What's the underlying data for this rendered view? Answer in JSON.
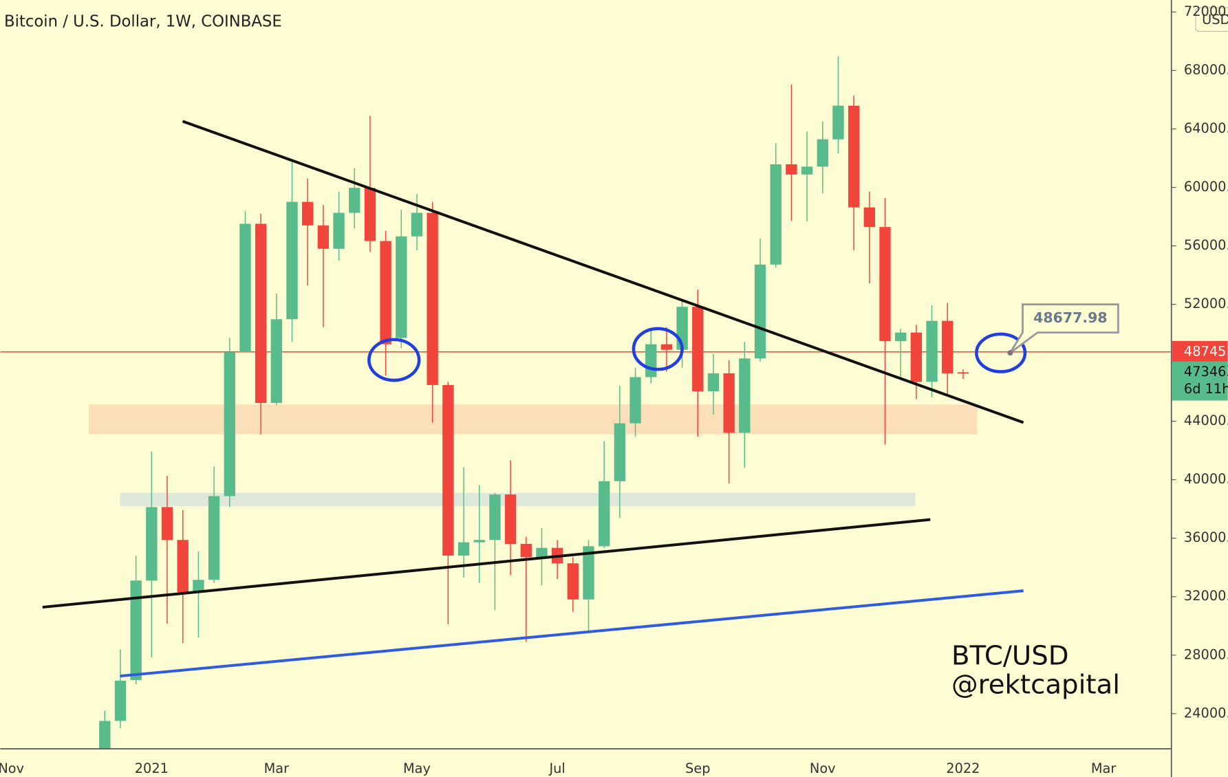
{
  "chart_data": {
    "type": "candlestick",
    "title": "Bitcoin / U.S. Dollar, 1W, COINBASE",
    "currency": "USD",
    "categories": [
      "Nov",
      null,
      null,
      null,
      null,
      null,
      null,
      null,
      null,
      "2021",
      null,
      null,
      null,
      null,
      null,
      null,
      null,
      "Mar",
      null,
      null,
      null,
      null,
      null,
      null,
      null,
      null,
      "May",
      null,
      null,
      null,
      null,
      null,
      null,
      null,
      null,
      "Jul",
      null,
      null,
      null,
      null,
      null,
      null,
      null,
      null,
      "Sep",
      null,
      null,
      null,
      null,
      null,
      null,
      null,
      "Nov",
      null,
      null,
      null,
      null,
      null,
      null,
      null,
      null,
      "2022",
      null,
      null,
      null,
      null,
      null,
      null,
      null,
      null,
      "Mar",
      null,
      null,
      null,
      null
    ],
    "open": [
      null,
      null,
      null,
      null,
      null,
      null,
      19200,
      23500,
      26300,
      33100,
      38130,
      35880,
      32300,
      33150,
      38880,
      48730,
      57510,
      45250,
      50980,
      59010,
      57400,
      55800,
      58260,
      59970,
      56330,
      49700,
      56650,
      58260,
      46480,
      34810,
      35720,
      35880,
      38990,
      35610,
      34700,
      35340,
      34280,
      31810,
      35450,
      39900,
      43860,
      47020,
      49270,
      48890,
      51830,
      46050,
      47280,
      43210,
      48300,
      54720,
      61580,
      60880,
      61420,
      63290,
      65590,
      58630,
      57290,
      49480,
      50070,
      46700,
      50870,
      47350,
      null,
      null,
      null,
      null,
      null,
      null,
      null,
      null,
      null,
      null,
      null,
      null,
      null
    ],
    "high": [
      null,
      null,
      null,
      null,
      null,
      null,
      24200,
      28390,
      34800,
      41930,
      40270,
      37920,
      35100,
      40900,
      49700,
      58370,
      58200,
      52740,
      61740,
      60610,
      58790,
      59700,
      61310,
      64900,
      57030,
      58470,
      59540,
      59010,
      46700,
      40860,
      39630,
      39100,
      41340,
      36100,
      36700,
      35880,
      34700,
      35880,
      42630,
      46430,
      47660,
      50330,
      50440,
      52210,
      53010,
      48620,
      48190,
      49420,
      56490,
      63020,
      67040,
      63820,
      64520,
      68960,
      66290,
      59700,
      59280,
      50330,
      50600,
      51940,
      52100,
      47550,
      null,
      null,
      null,
      null,
      null,
      null,
      null,
      null,
      null,
      null,
      null,
      null,
      null
    ],
    "low": [
      null,
      null,
      null,
      null,
      null,
      null,
      19000,
      23000,
      26000,
      27850,
      30150,
      28820,
      29200,
      32940,
      38130,
      48730,
      43110,
      45090,
      49420,
      53280,
      50440,
      54990,
      57190,
      55580,
      47120,
      49000,
      55700,
      43910,
      30100,
      33310,
      32940,
      31070,
      33470,
      28920,
      32780,
      33200,
      30960,
      29570,
      35340,
      37380,
      42950,
      46590,
      47390,
      47660,
      42950,
      44450,
      39740,
      40810,
      48090,
      54510,
      57720,
      57670,
      59600,
      62330,
      55690,
      53440,
      42410,
      47020,
      45520,
      45630,
      45840,
      46900,
      null,
      null,
      null,
      null,
      null,
      null,
      null,
      null,
      null,
      null,
      null,
      null,
      null
    ],
    "close": [
      null,
      null,
      null,
      null,
      null,
      null,
      23500,
      26250,
      33100,
      38130,
      35880,
      32300,
      33150,
      38880,
      48730,
      57510,
      45250,
      50980,
      59010,
      57400,
      55800,
      58260,
      59970,
      56330,
      49270,
      56650,
      58260,
      46480,
      34810,
      35720,
      35880,
      38990,
      35610,
      34700,
      35340,
      34280,
      31810,
      35450,
      39900,
      43860,
      47020,
      49270,
      48890,
      51830,
      46050,
      47280,
      43210,
      48300,
      54720,
      61580,
      60880,
      61420,
      63290,
      65590,
      58630,
      57290,
      49480,
      50070,
      46700,
      50870,
      47280,
      47346,
      null,
      null,
      null,
      null,
      null,
      null,
      null,
      null,
      null,
      null,
      null,
      null,
      null
    ],
    "up_color": "#58bb8b",
    "down_color": "#f1453b",
    "ylim": [
      21590,
      72820
    ],
    "yticks": [
      {
        "value": 24000,
        "label": "24000.00"
      },
      {
        "value": 28000,
        "label": "28000.00"
      },
      {
        "value": 32000,
        "label": "32000.00"
      },
      {
        "value": 36000,
        "label": "36000.00"
      },
      {
        "value": 40000,
        "label": "40000.00"
      },
      {
        "value": 44000,
        "label": "44000.00"
      },
      {
        "value": 48000,
        "label": "48000.00"
      },
      {
        "value": 52000,
        "label": "52000.00"
      },
      {
        "value": 56000,
        "label": "56000.00"
      },
      {
        "value": 60000,
        "label": "60000.00"
      },
      {
        "value": 64000,
        "label": "64000.00"
      },
      {
        "value": 68000,
        "label": "68000.00"
      },
      {
        "value": 72000,
        "label": "72000.00"
      }
    ],
    "price_line": {
      "value": 48745,
      "label": "48745.",
      "color": "#f1453b"
    },
    "last_price": {
      "value": 47346,
      "label": "47346.",
      "countdown": "6d 11h",
      "color": "#58bb8b"
    },
    "callout": {
      "value": 48677.98
    },
    "annotations": [
      "BTC/USD",
      "@rektcapital"
    ]
  }
}
